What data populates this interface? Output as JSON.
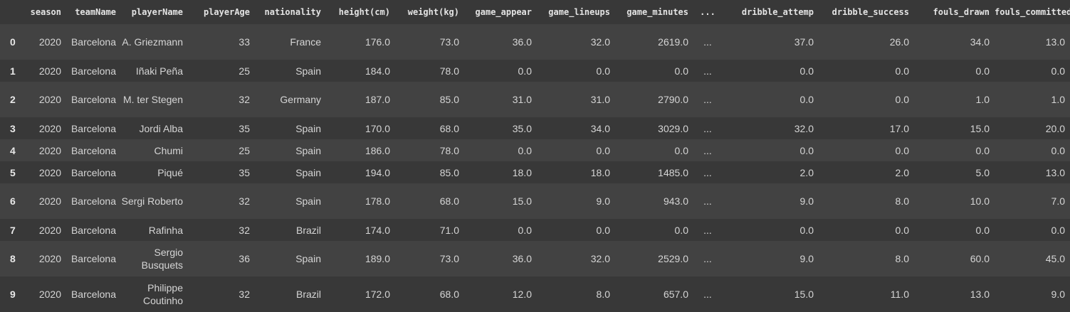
{
  "columns": [
    "",
    "season",
    "teamName",
    "playerName",
    "playerAge",
    "nationality",
    "height(cm)",
    "weight(kg)",
    "game_appear",
    "game_lineups",
    "game_minutes",
    "...",
    "dribble_attemp",
    "dribble_success",
    "fouls_drawn",
    "fouls_committed"
  ],
  "rows": [
    [
      "0",
      "2020",
      "Barcelona",
      "A. Griezmann",
      "33",
      "France",
      "176.0",
      "73.0",
      "36.0",
      "32.0",
      "2619.0",
      "...",
      "37.0",
      "26.0",
      "34.0",
      "13.0"
    ],
    [
      "1",
      "2020",
      "Barcelona",
      "Iñaki Peña",
      "25",
      "Spain",
      "184.0",
      "78.0",
      "0.0",
      "0.0",
      "0.0",
      "...",
      "0.0",
      "0.0",
      "0.0",
      "0.0"
    ],
    [
      "2",
      "2020",
      "Barcelona",
      "M. ter Stegen",
      "32",
      "Germany",
      "187.0",
      "85.0",
      "31.0",
      "31.0",
      "2790.0",
      "...",
      "0.0",
      "0.0",
      "1.0",
      "1.0"
    ],
    [
      "3",
      "2020",
      "Barcelona",
      "Jordi Alba",
      "35",
      "Spain",
      "170.0",
      "68.0",
      "35.0",
      "34.0",
      "3029.0",
      "...",
      "32.0",
      "17.0",
      "15.0",
      "20.0"
    ],
    [
      "4",
      "2020",
      "Barcelona",
      "Chumi",
      "25",
      "Spain",
      "186.0",
      "78.0",
      "0.0",
      "0.0",
      "0.0",
      "...",
      "0.0",
      "0.0",
      "0.0",
      "0.0"
    ],
    [
      "5",
      "2020",
      "Barcelona",
      "Piqué",
      "35",
      "Spain",
      "194.0",
      "85.0",
      "18.0",
      "18.0",
      "1485.0",
      "...",
      "2.0",
      "2.0",
      "5.0",
      "13.0"
    ],
    [
      "6",
      "2020",
      "Barcelona",
      "Sergi Roberto",
      "32",
      "Spain",
      "178.0",
      "68.0",
      "15.0",
      "9.0",
      "943.0",
      "...",
      "9.0",
      "8.0",
      "10.0",
      "7.0"
    ],
    [
      "7",
      "2020",
      "Barcelona",
      "Rafinha",
      "32",
      "Brazil",
      "174.0",
      "71.0",
      "0.0",
      "0.0",
      "0.0",
      "...",
      "0.0",
      "0.0",
      "0.0",
      "0.0"
    ],
    [
      "8",
      "2020",
      "Barcelona",
      "Sergio Busquets",
      "36",
      "Spain",
      "189.0",
      "73.0",
      "36.0",
      "32.0",
      "2529.0",
      "...",
      "9.0",
      "8.0",
      "60.0",
      "45.0"
    ],
    [
      "9",
      "2020",
      "Barcelona",
      "Philippe Coutinho",
      "32",
      "Brazil",
      "172.0",
      "68.0",
      "12.0",
      "8.0",
      "657.0",
      "...",
      "15.0",
      "11.0",
      "13.0",
      "9.0"
    ]
  ]
}
